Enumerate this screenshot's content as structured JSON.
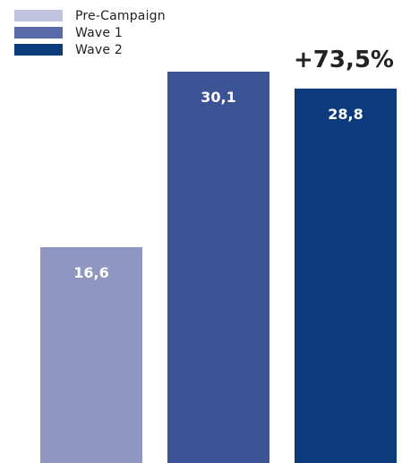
{
  "chart_data": {
    "type": "bar",
    "categories": [
      "Pre-Campaign",
      "Wave 1",
      "Wave 2"
    ],
    "values": [
      16.6,
      30.1,
      28.8
    ],
    "value_labels": [
      "16,6",
      "30,1",
      "28,8"
    ],
    "colors": [
      "#8f97c0",
      "#3c5496",
      "#0b3a7d"
    ],
    "legend": [
      {
        "label": "Pre-Campaign",
        "color": "#c0c4e0"
      },
      {
        "label": "Wave 1",
        "color": "#5a6aa8"
      },
      {
        "label": "Wave 2",
        "color": "#0b3a7d"
      }
    ],
    "legend_position": "top-left",
    "annotation": "+73,5%",
    "ylim": [
      0,
      30.1
    ],
    "grid": false
  }
}
